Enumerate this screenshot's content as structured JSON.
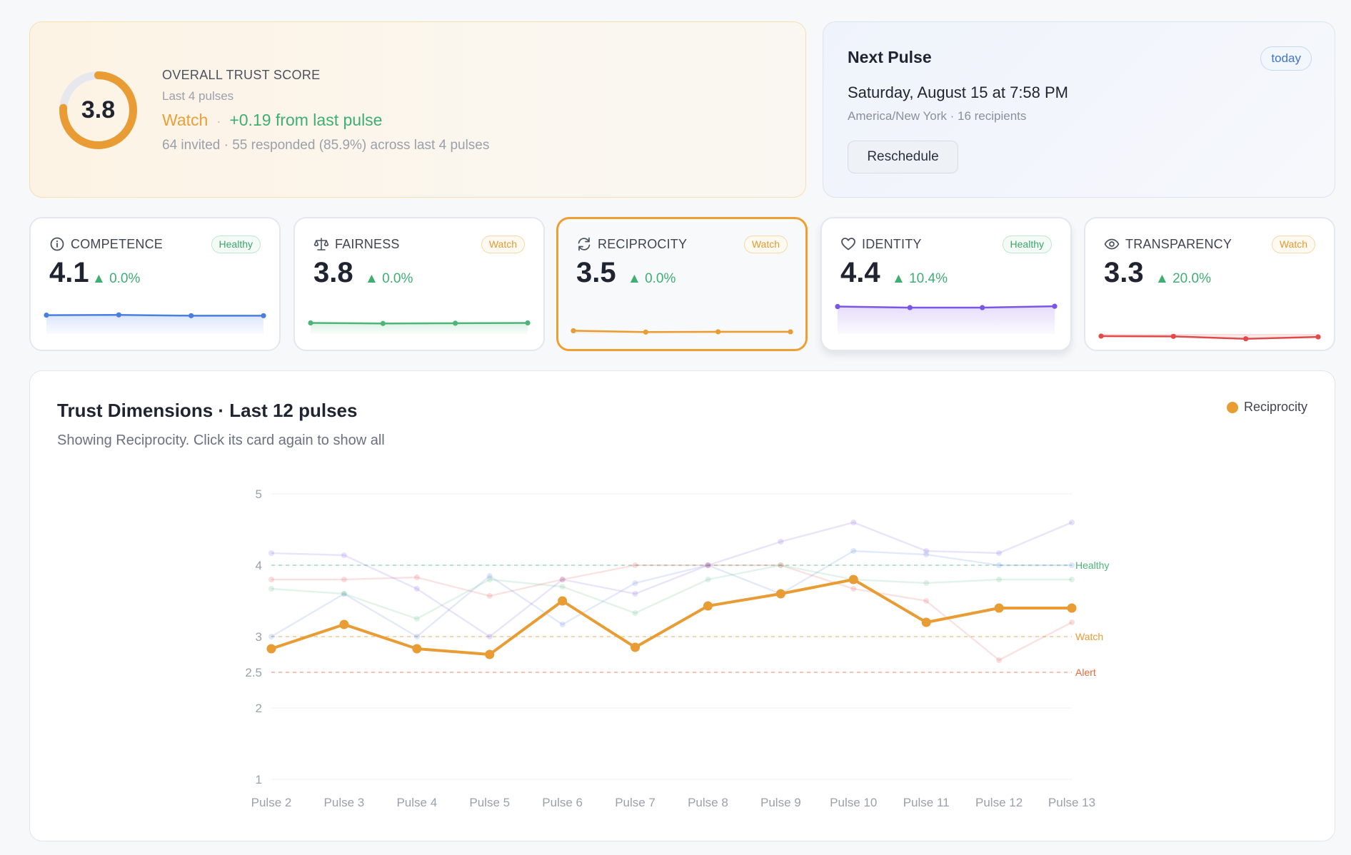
{
  "overall": {
    "score": "3.8",
    "score_value": 3.8,
    "label": "OVERALL TRUST SCORE",
    "window": "Last 4 pulses",
    "status": "Watch",
    "separator": "·",
    "delta": "+0.19 from last pulse",
    "stats": "64 invited · 55 responded (85.9%) across last 4 pulses",
    "ring_color": "#e89c33"
  },
  "next_pulse": {
    "title": "Next Pulse",
    "badge": "today",
    "date": "Saturday, August 15 at 7:58 PM",
    "meta": "America/New York · 16 recipients",
    "reschedule_label": "Reschedule"
  },
  "dimensions": [
    {
      "name": "COMPETENCE",
      "icon": "info-icon",
      "badge": "Healthy",
      "value": "4.1",
      "trend": "▲ 0.0%",
      "color": "#4a7fe0",
      "fill": "#dbe6fb",
      "spark": [
        4.08,
        4.09,
        4.06,
        4.06
      ]
    },
    {
      "name": "FAIRNESS",
      "icon": "scale-icon",
      "badge": "Watch",
      "value": "3.8",
      "trend": "▲ 0.0%",
      "color": "#4cb577",
      "fill": "#dcf2e5",
      "spark": [
        3.79,
        3.77,
        3.78,
        3.79
      ]
    },
    {
      "name": "RECIPROCITY",
      "icon": "refresh-icon",
      "badge": "Watch",
      "value": "3.5",
      "trend": "▲ 0.0%",
      "color": "#e89c33",
      "fill": "#fbe7cc",
      "spark": [
        3.5,
        3.45,
        3.46,
        3.46
      ]
    },
    {
      "name": "IDENTITY",
      "icon": "heart-icon",
      "badge": "Healthy",
      "value": "4.4",
      "trend": "▲ 10.4%",
      "color": "#7b55e6",
      "fill": "#e6ddfb",
      "spark": [
        4.4,
        4.36,
        4.36,
        4.41
      ]
    },
    {
      "name": "TRANSPARENCY",
      "icon": "eye-icon",
      "badge": "Watch",
      "value": "3.3",
      "trend": "▲ 20.0%",
      "color": "#e04a4a",
      "fill": "#fadada",
      "spark": [
        3.3,
        3.29,
        3.2,
        3.27
      ]
    }
  ],
  "trend": {
    "title": "Trust Dimensions · Last 12 pulses",
    "subtitle": "Showing Reciprocity. Click its card again to show all",
    "legend_label": "Reciprocity"
  },
  "chart_data": {
    "type": "line",
    "title": "Trust Dimensions · Last 12 pulses",
    "x": [
      "Pulse 2",
      "Pulse 3",
      "Pulse 4",
      "Pulse 5",
      "Pulse 6",
      "Pulse 7",
      "Pulse 8",
      "Pulse 9",
      "Pulse 10",
      "Pulse 11",
      "Pulse 12",
      "Pulse 13"
    ],
    "ylim": [
      1,
      5
    ],
    "yticks": [
      1,
      2,
      2.5,
      3,
      4,
      5
    ],
    "grid": true,
    "legend": "top-right",
    "highlight": "Reciprocity",
    "reference_lines": [
      {
        "label": "Healthy",
        "value": 4,
        "color": "#4cb577"
      },
      {
        "label": "Watch",
        "value": 3,
        "color": "#e89c33"
      },
      {
        "label": "Alert",
        "value": 2.5,
        "color": "#e8673e"
      }
    ],
    "series": [
      {
        "name": "Reciprocity",
        "color": "#e89c33",
        "values": [
          2.83,
          3.17,
          2.83,
          2.75,
          3.5,
          2.85,
          3.43,
          3.6,
          3.8,
          3.2,
          3.4,
          3.4
        ]
      },
      {
        "name": "Competence",
        "color": "#4a7fe0",
        "values": [
          3.0,
          3.6,
          3.0,
          3.85,
          3.17,
          3.75,
          4.0,
          3.6,
          4.2,
          4.15,
          4.0,
          4.0
        ]
      },
      {
        "name": "Fairness",
        "color": "#4cb577",
        "values": [
          3.67,
          3.6,
          3.25,
          3.8,
          3.7,
          3.33,
          3.8,
          4.0,
          3.8,
          3.75,
          3.8,
          3.8
        ]
      },
      {
        "name": "Identity",
        "color": "#7b55e6",
        "values": [
          4.17,
          4.14,
          3.67,
          3.0,
          3.8,
          3.6,
          4.0,
          4.33,
          4.6,
          4.2,
          4.17,
          4.6
        ]
      },
      {
        "name": "Transparency",
        "color": "#e04a4a",
        "values": [
          3.8,
          3.8,
          3.83,
          3.57,
          3.8,
          4.0,
          4.0,
          4.0,
          3.67,
          3.5,
          2.67,
          3.2
        ]
      }
    ]
  }
}
